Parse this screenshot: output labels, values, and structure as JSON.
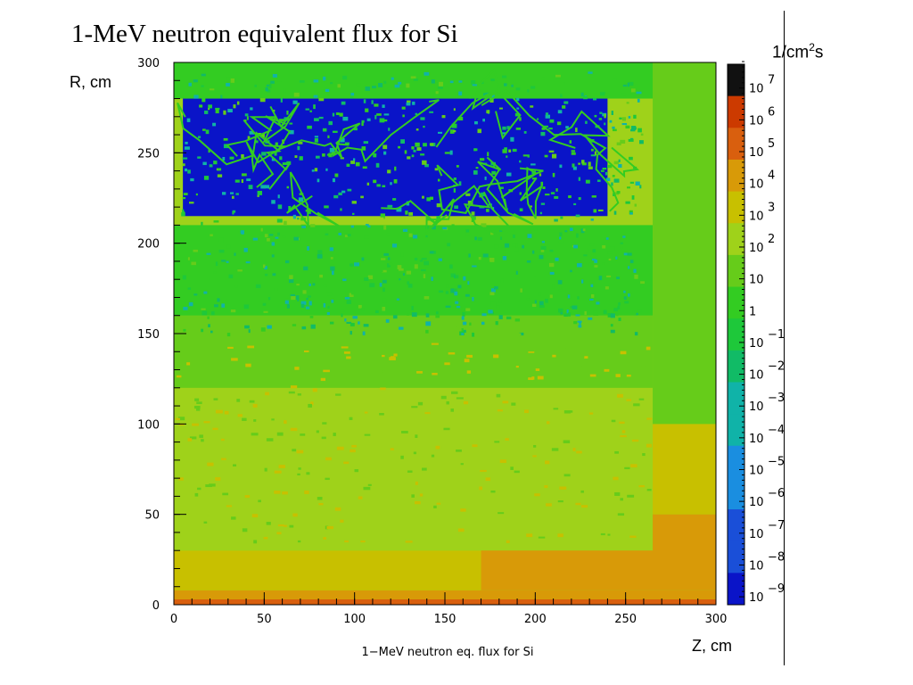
{
  "slide": {
    "title": "1-MeV neutron equivalent flux for Si",
    "unit_base": "1/cm",
    "unit_sup": "2",
    "unit_suffix": "s",
    "y_axis_label": "R, cm",
    "x_axis_label": "Z, cm"
  },
  "chart_data": {
    "type": "heatmap",
    "title": "1−MeV neutron eq. flux for Si",
    "xlabel": "Z, cm",
    "ylabel": "R, cm",
    "xlim": [
      0,
      300
    ],
    "ylim": [
      0,
      300
    ],
    "x_ticks": [
      "0",
      "50",
      "100",
      "150",
      "200",
      "250",
      "300"
    ],
    "y_ticks": [
      "0",
      "50",
      "100",
      "150",
      "200",
      "250",
      "300"
    ],
    "colorbar": {
      "label": "1/cm²s",
      "scale": "log",
      "range": [
        "10^-9",
        "10^7"
      ],
      "tick_labels": [
        {
          "base": "10",
          "exp": "7"
        },
        {
          "base": "10",
          "exp": "6"
        },
        {
          "base": "10",
          "exp": "5"
        },
        {
          "base": "10",
          "exp": "4"
        },
        {
          "base": "10",
          "exp": "3"
        },
        {
          "base": "10",
          "exp": "2"
        },
        {
          "base": "10",
          "exp": ""
        },
        {
          "base": "1",
          "exp": ""
        },
        {
          "base": "10",
          "exp": "−1"
        },
        {
          "base": "10",
          "exp": "−2"
        },
        {
          "base": "10",
          "exp": "−3"
        },
        {
          "base": "10",
          "exp": "−4"
        },
        {
          "base": "10",
          "exp": "−5"
        },
        {
          "base": "10",
          "exp": "−6"
        },
        {
          "base": "10",
          "exp": "−7"
        },
        {
          "base": "10",
          "exp": "−8"
        },
        {
          "base": "10",
          "exp": "−9"
        }
      ]
    },
    "regions": [
      {
        "z": [
          0,
          300
        ],
        "r": [
          0,
          3
        ],
        "flux": "1e5"
      },
      {
        "z": [
          0,
          300
        ],
        "r": [
          3,
          8
        ],
        "flux": "1e4"
      },
      {
        "z": [
          170,
          300
        ],
        "r": [
          8,
          50
        ],
        "flux": "1e4"
      },
      {
        "z": [
          0,
          170
        ],
        "r": [
          8,
          30
        ],
        "flux": "1e3"
      },
      {
        "z": [
          0,
          265
        ],
        "r": [
          30,
          120
        ],
        "flux": "1e2"
      },
      {
        "z": [
          265,
          300
        ],
        "r": [
          50,
          100
        ],
        "flux": "1e3"
      },
      {
        "z": [
          0,
          265
        ],
        "r": [
          120,
          160
        ],
        "flux": "10"
      },
      {
        "z": [
          0,
          265
        ],
        "r": [
          160,
          210
        ],
        "flux": "1"
      },
      {
        "z": [
          265,
          300
        ],
        "r": [
          100,
          300
        ],
        "flux": "10"
      },
      {
        "z": [
          5,
          240
        ],
        "r": [
          215,
          280
        ],
        "flux": "1e-9"
      },
      {
        "z": [
          0,
          265
        ],
        "r": [
          280,
          300
        ],
        "flux": "1"
      }
    ],
    "colors": {
      "1e7": "#111111",
      "1e6": "#cc3a00",
      "1e5": "#d95f0e",
      "1e4": "#d89a08",
      "1e3": "#c8c000",
      "1e2": "#9fd21a",
      "10": "#66cc1a",
      "1": "#33cc22",
      "1e-1": "#1ec83a",
      "1e-2": "#11bb66",
      "1e-3": "#10b3a8",
      "1e-5": "#1a8ee0",
      "1e-7": "#1a4fd8",
      "1e-9": "#0a14c8"
    }
  }
}
